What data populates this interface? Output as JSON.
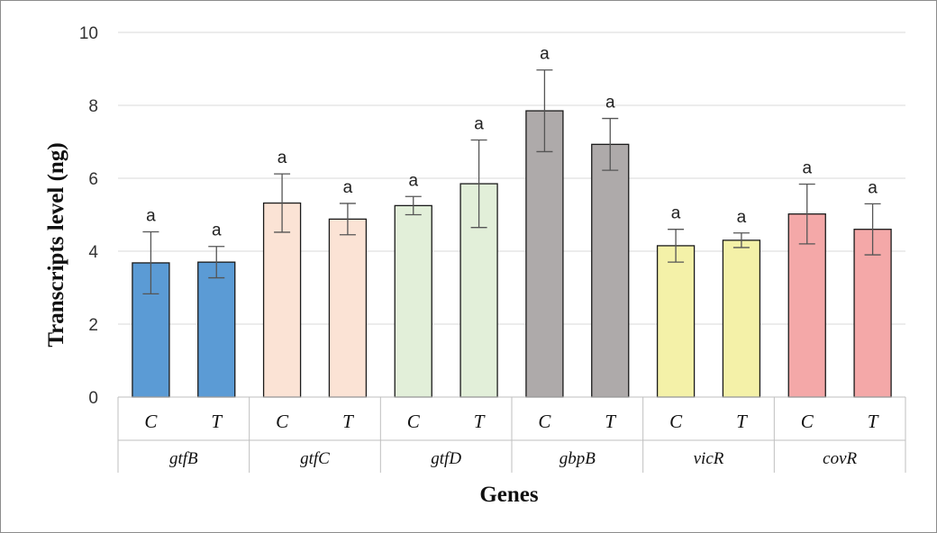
{
  "chart_data": {
    "type": "bar",
    "title": "",
    "xlabel": "Genes",
    "ylabel": "Transcripts level (ng)",
    "ylim": [
      0,
      10
    ],
    "yticks": [
      0,
      2,
      4,
      6,
      8,
      10
    ],
    "grid": true,
    "legend": "none",
    "groups": [
      "gtfB",
      "gtfC",
      "gtfD",
      "gbpB",
      "vicR",
      "covR"
    ],
    "subcategories": [
      "C",
      "T"
    ],
    "bars": [
      {
        "group": "gtfB",
        "cat": "C",
        "value": 3.68,
        "err": 0.85,
        "label": "a",
        "color": "#5b9bd5"
      },
      {
        "group": "gtfB",
        "cat": "T",
        "value": 3.7,
        "err": 0.43,
        "label": "a",
        "color": "#5b9bd5"
      },
      {
        "group": "gtfC",
        "cat": "C",
        "value": 5.32,
        "err": 0.8,
        "label": "a",
        "color": "#fbe3d5"
      },
      {
        "group": "gtfC",
        "cat": "T",
        "value": 4.88,
        "err": 0.43,
        "label": "a",
        "color": "#fbe3d5"
      },
      {
        "group": "gtfD",
        "cat": "C",
        "value": 5.25,
        "err": 0.25,
        "label": "a",
        "color": "#e2efd9"
      },
      {
        "group": "gtfD",
        "cat": "T",
        "value": 5.85,
        "err": 1.2,
        "label": "a",
        "color": "#e2efd9"
      },
      {
        "group": "gbpB",
        "cat": "C",
        "value": 7.85,
        "err": 1.12,
        "label": "a",
        "color": "#aeaaaa"
      },
      {
        "group": "gbpB",
        "cat": "T",
        "value": 6.93,
        "err": 0.71,
        "label": "a",
        "color": "#aeaaaa"
      },
      {
        "group": "vicR",
        "cat": "C",
        "value": 4.15,
        "err": 0.45,
        "label": "a",
        "color": "#f4f1a8"
      },
      {
        "group": "vicR",
        "cat": "T",
        "value": 4.3,
        "err": 0.2,
        "label": "a",
        "color": "#f4f1a8"
      },
      {
        "group": "covR",
        "cat": "C",
        "value": 5.02,
        "err": 0.82,
        "label": "a",
        "color": "#f4a8a8"
      },
      {
        "group": "covR",
        "cat": "T",
        "value": 4.6,
        "err": 0.7,
        "label": "a",
        "color": "#f4a8a8"
      }
    ]
  }
}
